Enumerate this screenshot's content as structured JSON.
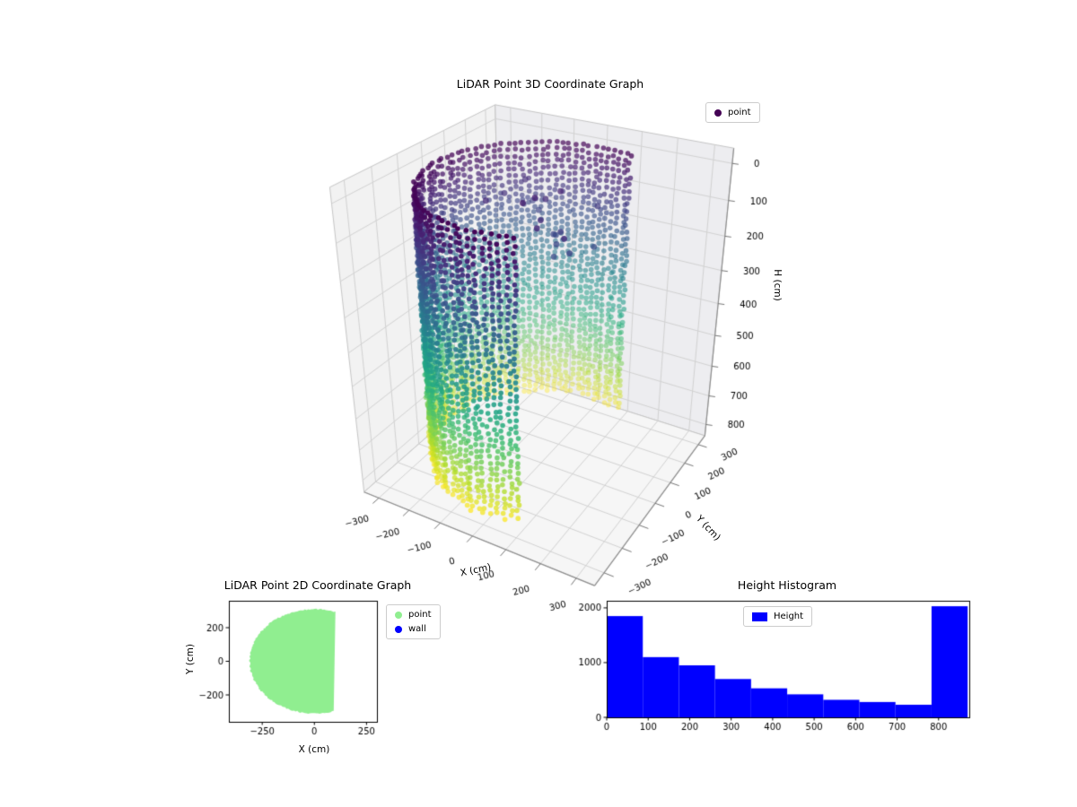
{
  "figure": {
    "background": "#ffffff"
  },
  "chart_data": [
    {
      "type": "scatter3d",
      "title": "LiDAR Point 3D Coordinate Graph",
      "xlabel": "X (cm)",
      "ylabel": "Y (cm)",
      "zlabel": "H (cm)",
      "xlim": [
        -350,
        350
      ],
      "ylim": [
        -350,
        350
      ],
      "hlim": [
        0,
        800
      ],
      "h_axis_inverted": true,
      "xticks": [
        -300,
        -200,
        -100,
        0,
        100,
        200,
        300
      ],
      "yticks": [
        -300,
        -200,
        -100,
        0,
        100,
        200,
        300
      ],
      "hticks": [
        0,
        100,
        200,
        300,
        400,
        500,
        600,
        700,
        800
      ],
      "legend": [
        {
          "label": "point",
          "color": "#440154"
        }
      ],
      "point_cloud": {
        "shape": "cylindrical wall scanned in vertical LiDAR columns, open toward +X",
        "radius_cm": 305,
        "arc_start_deg": 71,
        "arc_end_deg": 289,
        "columns": 64,
        "height_range_cm": [
          0,
          800
        ],
        "colormap": "viridis (dark purple at H=0 top, yellow at H=800 bottom)",
        "stray_points": {
          "count": 20,
          "height_range_cm": [
            60,
            200
          ]
        }
      }
    },
    {
      "type": "scatter",
      "title": "LiDAR Point 2D Coordinate Graph",
      "xlabel": "X (cm)",
      "ylabel": "Y (cm)",
      "xlim": [
        -410,
        300
      ],
      "ylim": [
        -360,
        360
      ],
      "xticks": [
        -250,
        0,
        250
      ],
      "yticks": [
        -200,
        0,
        200
      ],
      "legend": [
        {
          "label": "point",
          "color": "#90ee90"
        },
        {
          "label": "wall",
          "color": "#0000ff"
        }
      ],
      "region": {
        "shape": "filled disc clipped by chord at x = 100",
        "radius_cm": 310,
        "chord_x_cm": 100,
        "color": "#90ee90"
      }
    },
    {
      "type": "bar",
      "title": "Height Histogram",
      "bin_edges": [
        0,
        87,
        174,
        261,
        348,
        435,
        522,
        609,
        696,
        783,
        870
      ],
      "values": [
        1850,
        1100,
        950,
        700,
        530,
        420,
        320,
        280,
        230,
        2030
      ],
      "xticks": [
        0,
        100,
        200,
        300,
        400,
        500,
        600,
        700,
        800
      ],
      "yticks": [
        0,
        1000,
        2000
      ],
      "xlim": [
        0,
        874
      ],
      "ylim": [
        0,
        2130
      ],
      "bar_color": "#0000ff",
      "legend": [
        {
          "label": "Height",
          "color": "#0000ff"
        }
      ]
    }
  ]
}
